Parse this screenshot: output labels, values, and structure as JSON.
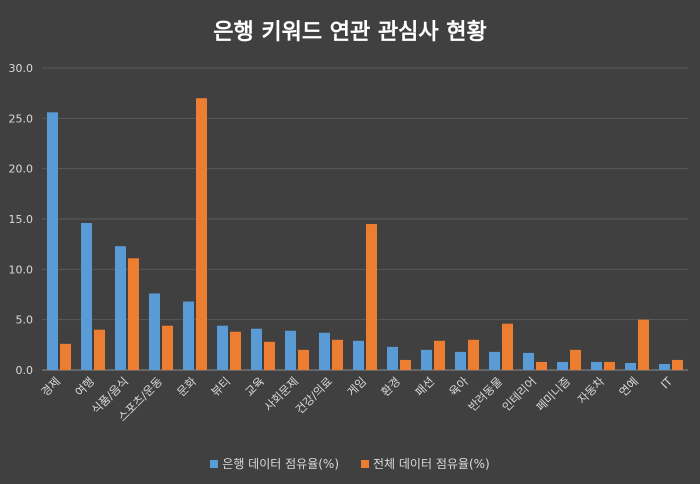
{
  "chart_data": {
    "type": "bar",
    "title": "은행 키워드 연관 관심사 현황",
    "categories": [
      "경제",
      "여행",
      "식품/음식",
      "스포츠/운동",
      "문화",
      "뷰티",
      "교육",
      "사회문제",
      "건강/의료",
      "게임",
      "환경",
      "패션",
      "육아",
      "반려동물",
      "인테리어",
      "페미니즘",
      "자동차",
      "연예",
      "IT"
    ],
    "series": [
      {
        "name": "은행 데이터 점유율(%)",
        "color": "#5b9bd5",
        "values": [
          25.6,
          14.6,
          12.3,
          7.6,
          6.8,
          4.4,
          4.1,
          3.9,
          3.7,
          2.9,
          2.3,
          2.0,
          1.8,
          1.8,
          1.7,
          0.8,
          0.8,
          0.7,
          0.6
        ]
      },
      {
        "name": "전체 데이터 점유율(%)",
        "color": "#ed7d31",
        "values": [
          2.6,
          4.0,
          11.1,
          4.4,
          27.0,
          3.8,
          2.8,
          2.0,
          3.0,
          14.5,
          1.0,
          2.9,
          3.0,
          4.6,
          0.8,
          2.0,
          0.8,
          5.0,
          1.0
        ]
      }
    ],
    "yticks": [
      "0.0",
      "5.0",
      "10.0",
      "15.0",
      "20.0",
      "25.0",
      "30.0"
    ],
    "ylim": [
      0,
      30
    ],
    "grid": true,
    "legend_position": "bottom"
  }
}
